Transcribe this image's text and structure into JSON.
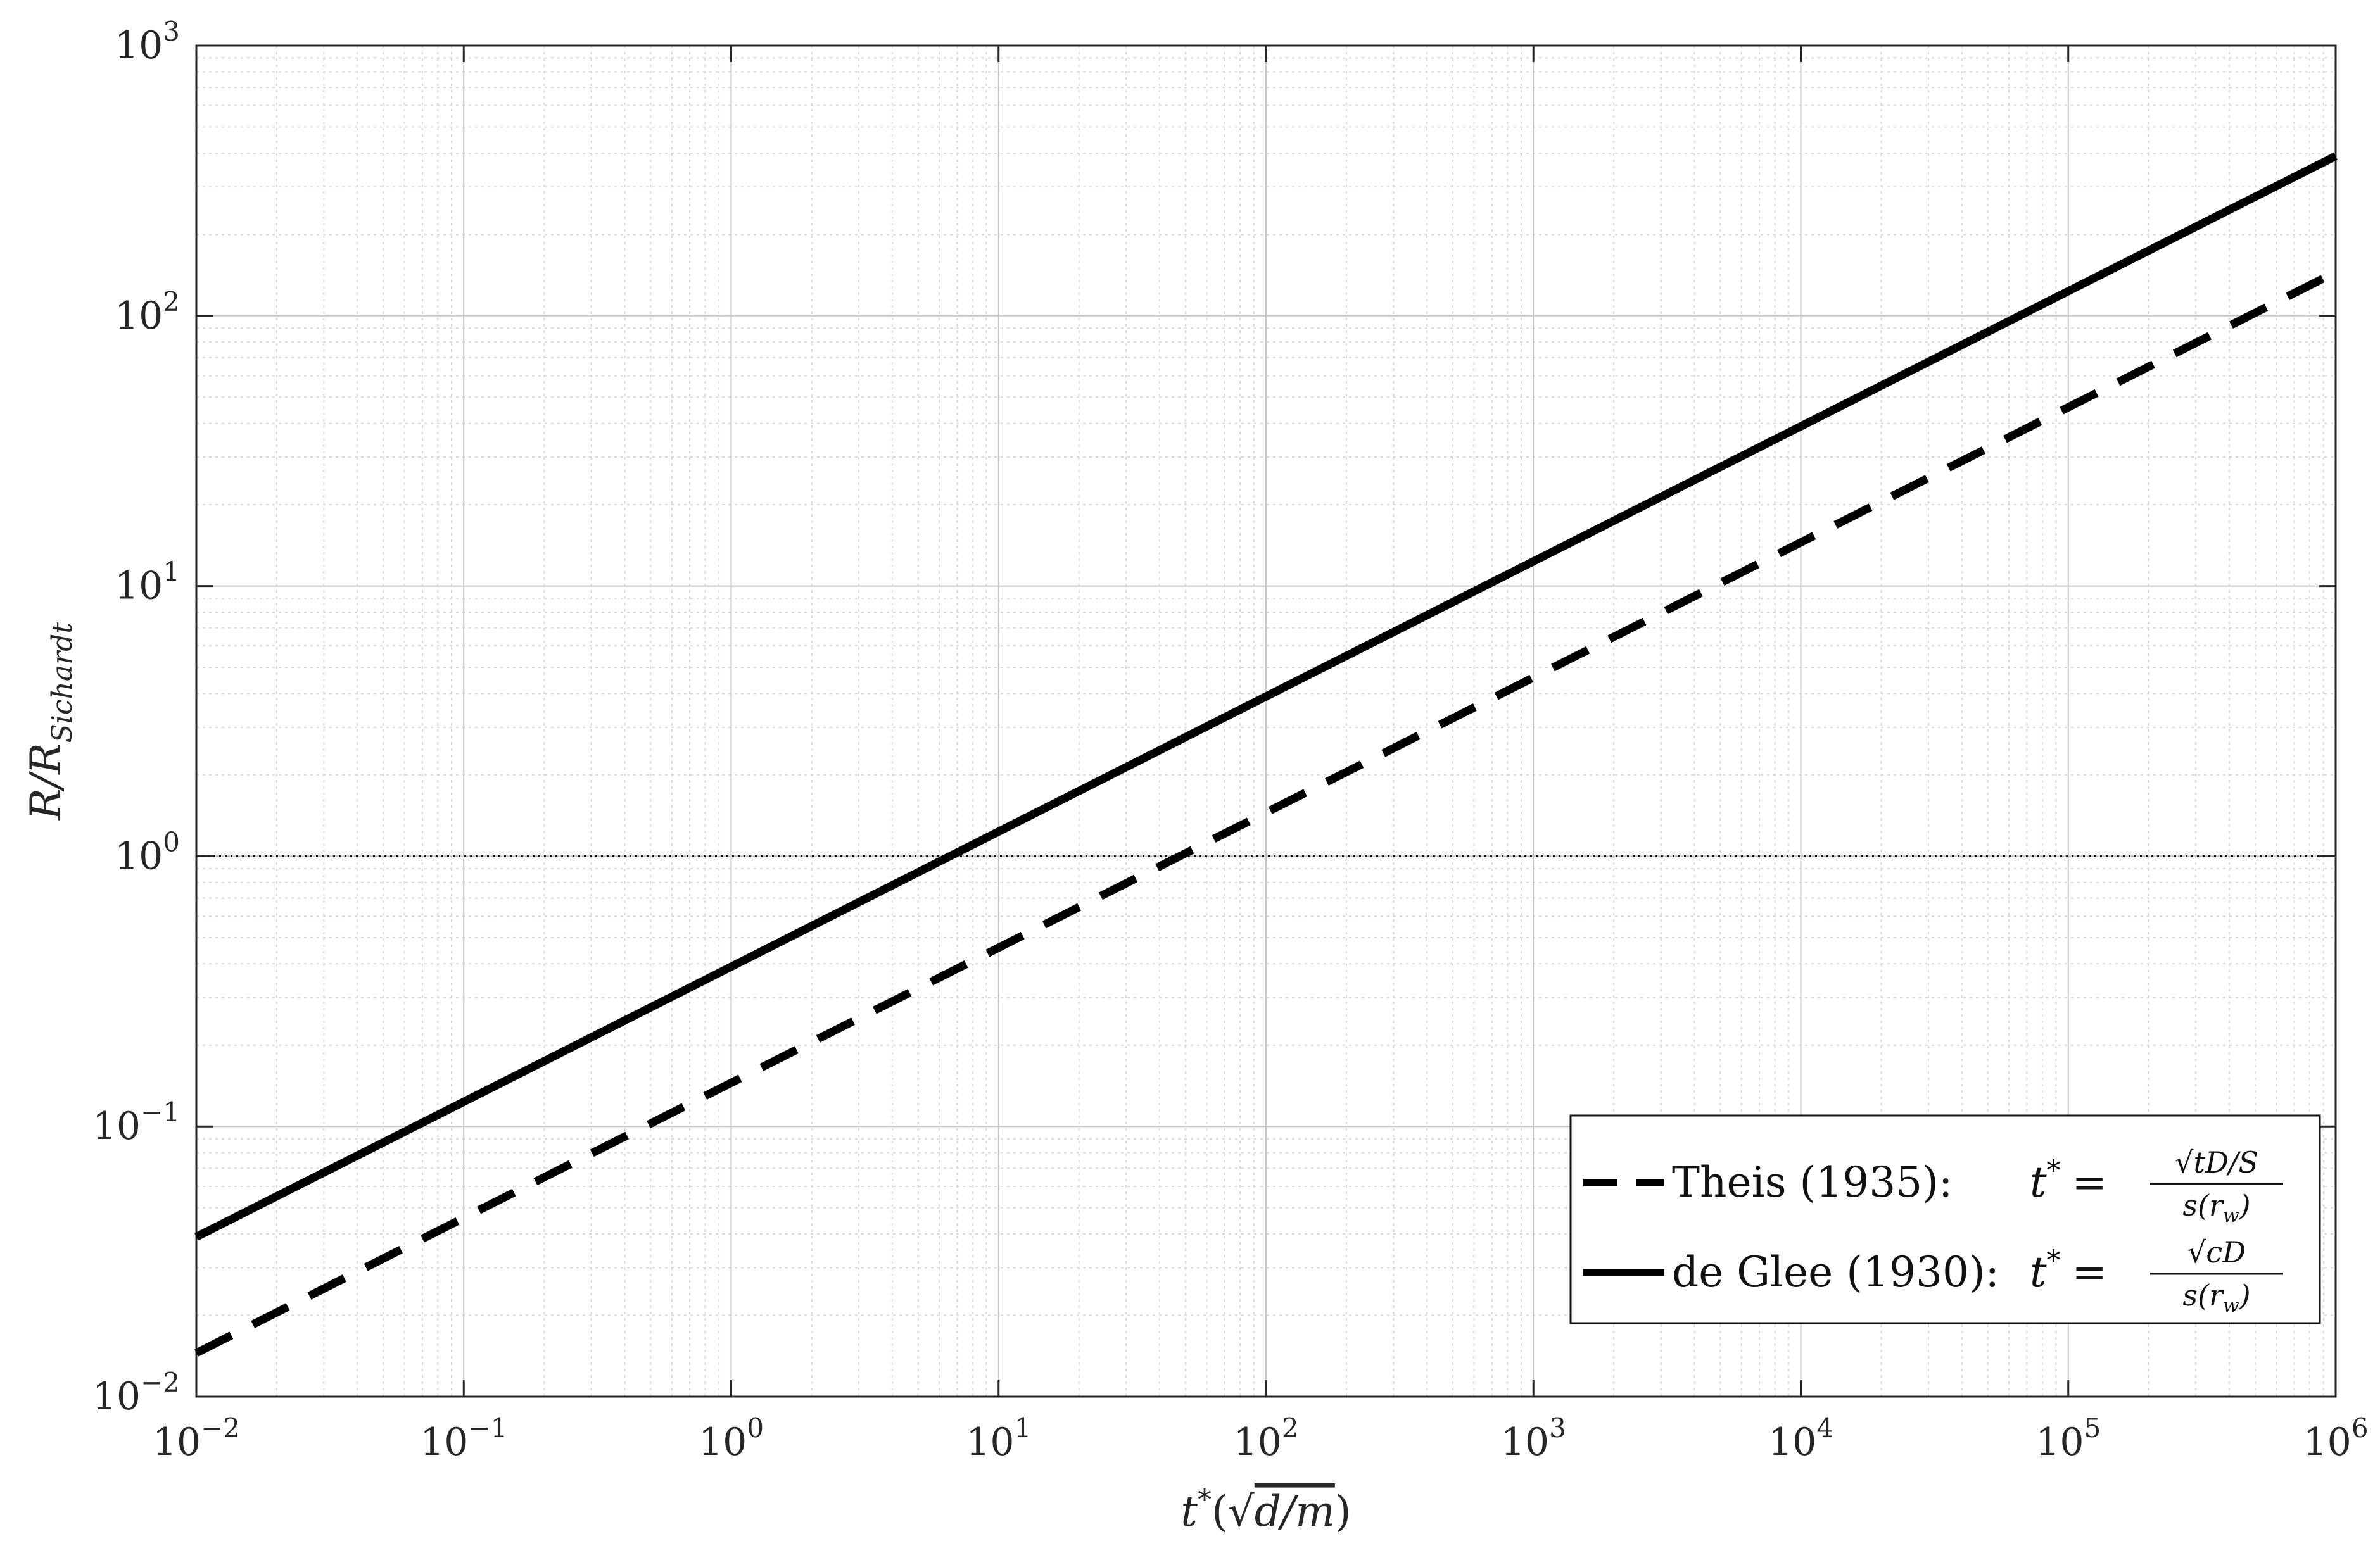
{
  "chart_data": {
    "type": "line",
    "x_scale": "log",
    "y_scale": "log",
    "xlim": [
      0.01,
      1000000
    ],
    "ylim": [
      0.01,
      1000
    ],
    "grid": true,
    "minor_grid": true,
    "legend_position": "bottom-right",
    "x_ticks": [
      {
        "base": "10",
        "exp": "−2",
        "value": 0.01
      },
      {
        "base": "10",
        "exp": "−1",
        "value": 0.1
      },
      {
        "base": "10",
        "exp": "0",
        "value": 1
      },
      {
        "base": "10",
        "exp": "1",
        "value": 10
      },
      {
        "base": "10",
        "exp": "2",
        "value": 100
      },
      {
        "base": "10",
        "exp": "3",
        "value": 1000
      },
      {
        "base": "10",
        "exp": "4",
        "value": 10000
      },
      {
        "base": "10",
        "exp": "5",
        "value": 100000
      },
      {
        "base": "10",
        "exp": "6",
        "value": 1000000
      }
    ],
    "y_ticks": [
      {
        "base": "10",
        "exp": "−2",
        "value": 0.01
      },
      {
        "base": "10",
        "exp": "−1",
        "value": 0.1
      },
      {
        "base": "10",
        "exp": "0",
        "value": 1
      },
      {
        "base": "10",
        "exp": "1",
        "value": 10
      },
      {
        "base": "10",
        "exp": "2",
        "value": 100
      },
      {
        "base": "10",
        "exp": "3",
        "value": 1000
      }
    ],
    "xlabel": {
      "main": "t",
      "sup": "*",
      "rest": "(√",
      "arg": "d/m",
      "close": ")"
    },
    "ylabel": {
      "main": "R/R",
      "sub": "Sichardt"
    },
    "reference_line": {
      "y": 1,
      "style": "dotted"
    },
    "series": [
      {
        "name": "Theis (1935):",
        "style": "dashed",
        "formula": {
          "lhs": "t",
          "sup": "*",
          "eq": "=",
          "numerator": "√tD/S",
          "denominator": "s(r",
          "den_sub": "w",
          "den_close": ")"
        },
        "x": [
          0.01,
          1000000
        ],
        "y": [
          0.0145,
          145
        ]
      },
      {
        "name": "de Glee (1930):",
        "style": "solid",
        "formula": {
          "lhs": "t",
          "sup": "*",
          "eq": "=",
          "numerator": "√cD",
          "denominator": "s(r",
          "den_sub": "w",
          "den_close": ")"
        },
        "x": [
          0.01,
          1000000
        ],
        "y": [
          0.039,
          390
        ]
      }
    ]
  }
}
